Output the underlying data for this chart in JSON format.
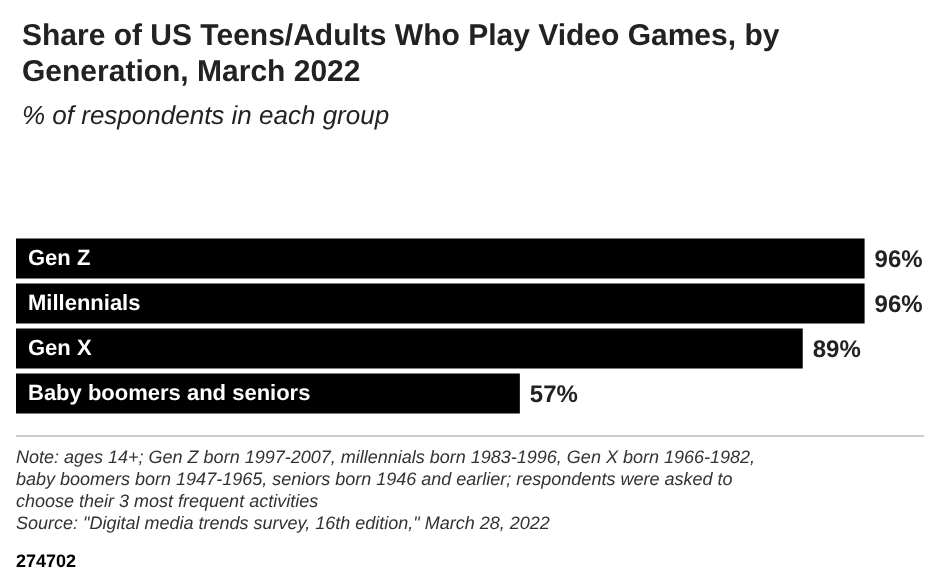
{
  "chart_data": {
    "type": "bar",
    "orientation": "horizontal",
    "title": "Share of US Teens/Adults Who Play Video Games, by Generation, March 2022",
    "subtitle": "% of respondents in each group",
    "categories": [
      "Gen Z",
      "Millennials",
      "Gen X",
      "Baby boomers and seniors"
    ],
    "values": [
      96,
      96,
      89,
      57
    ],
    "color": "#000000",
    "data_labels": true,
    "value_labels": [
      "96%",
      "96%",
      "89%",
      "57%"
    ],
    "annotations": [
      "Note: ages 14+; Gen Z born 1997-2007, millennials born 1983-1996, Gen X born 1966-1982, baby boomers born 1947-1965, seniors born 1946 and earlier; respondents were asked to choose their 3 most frequent activities",
      "Source: \"Digital media trends survey, 16th edition,\" March 28, 2022",
      "274702"
    ]
  }
}
